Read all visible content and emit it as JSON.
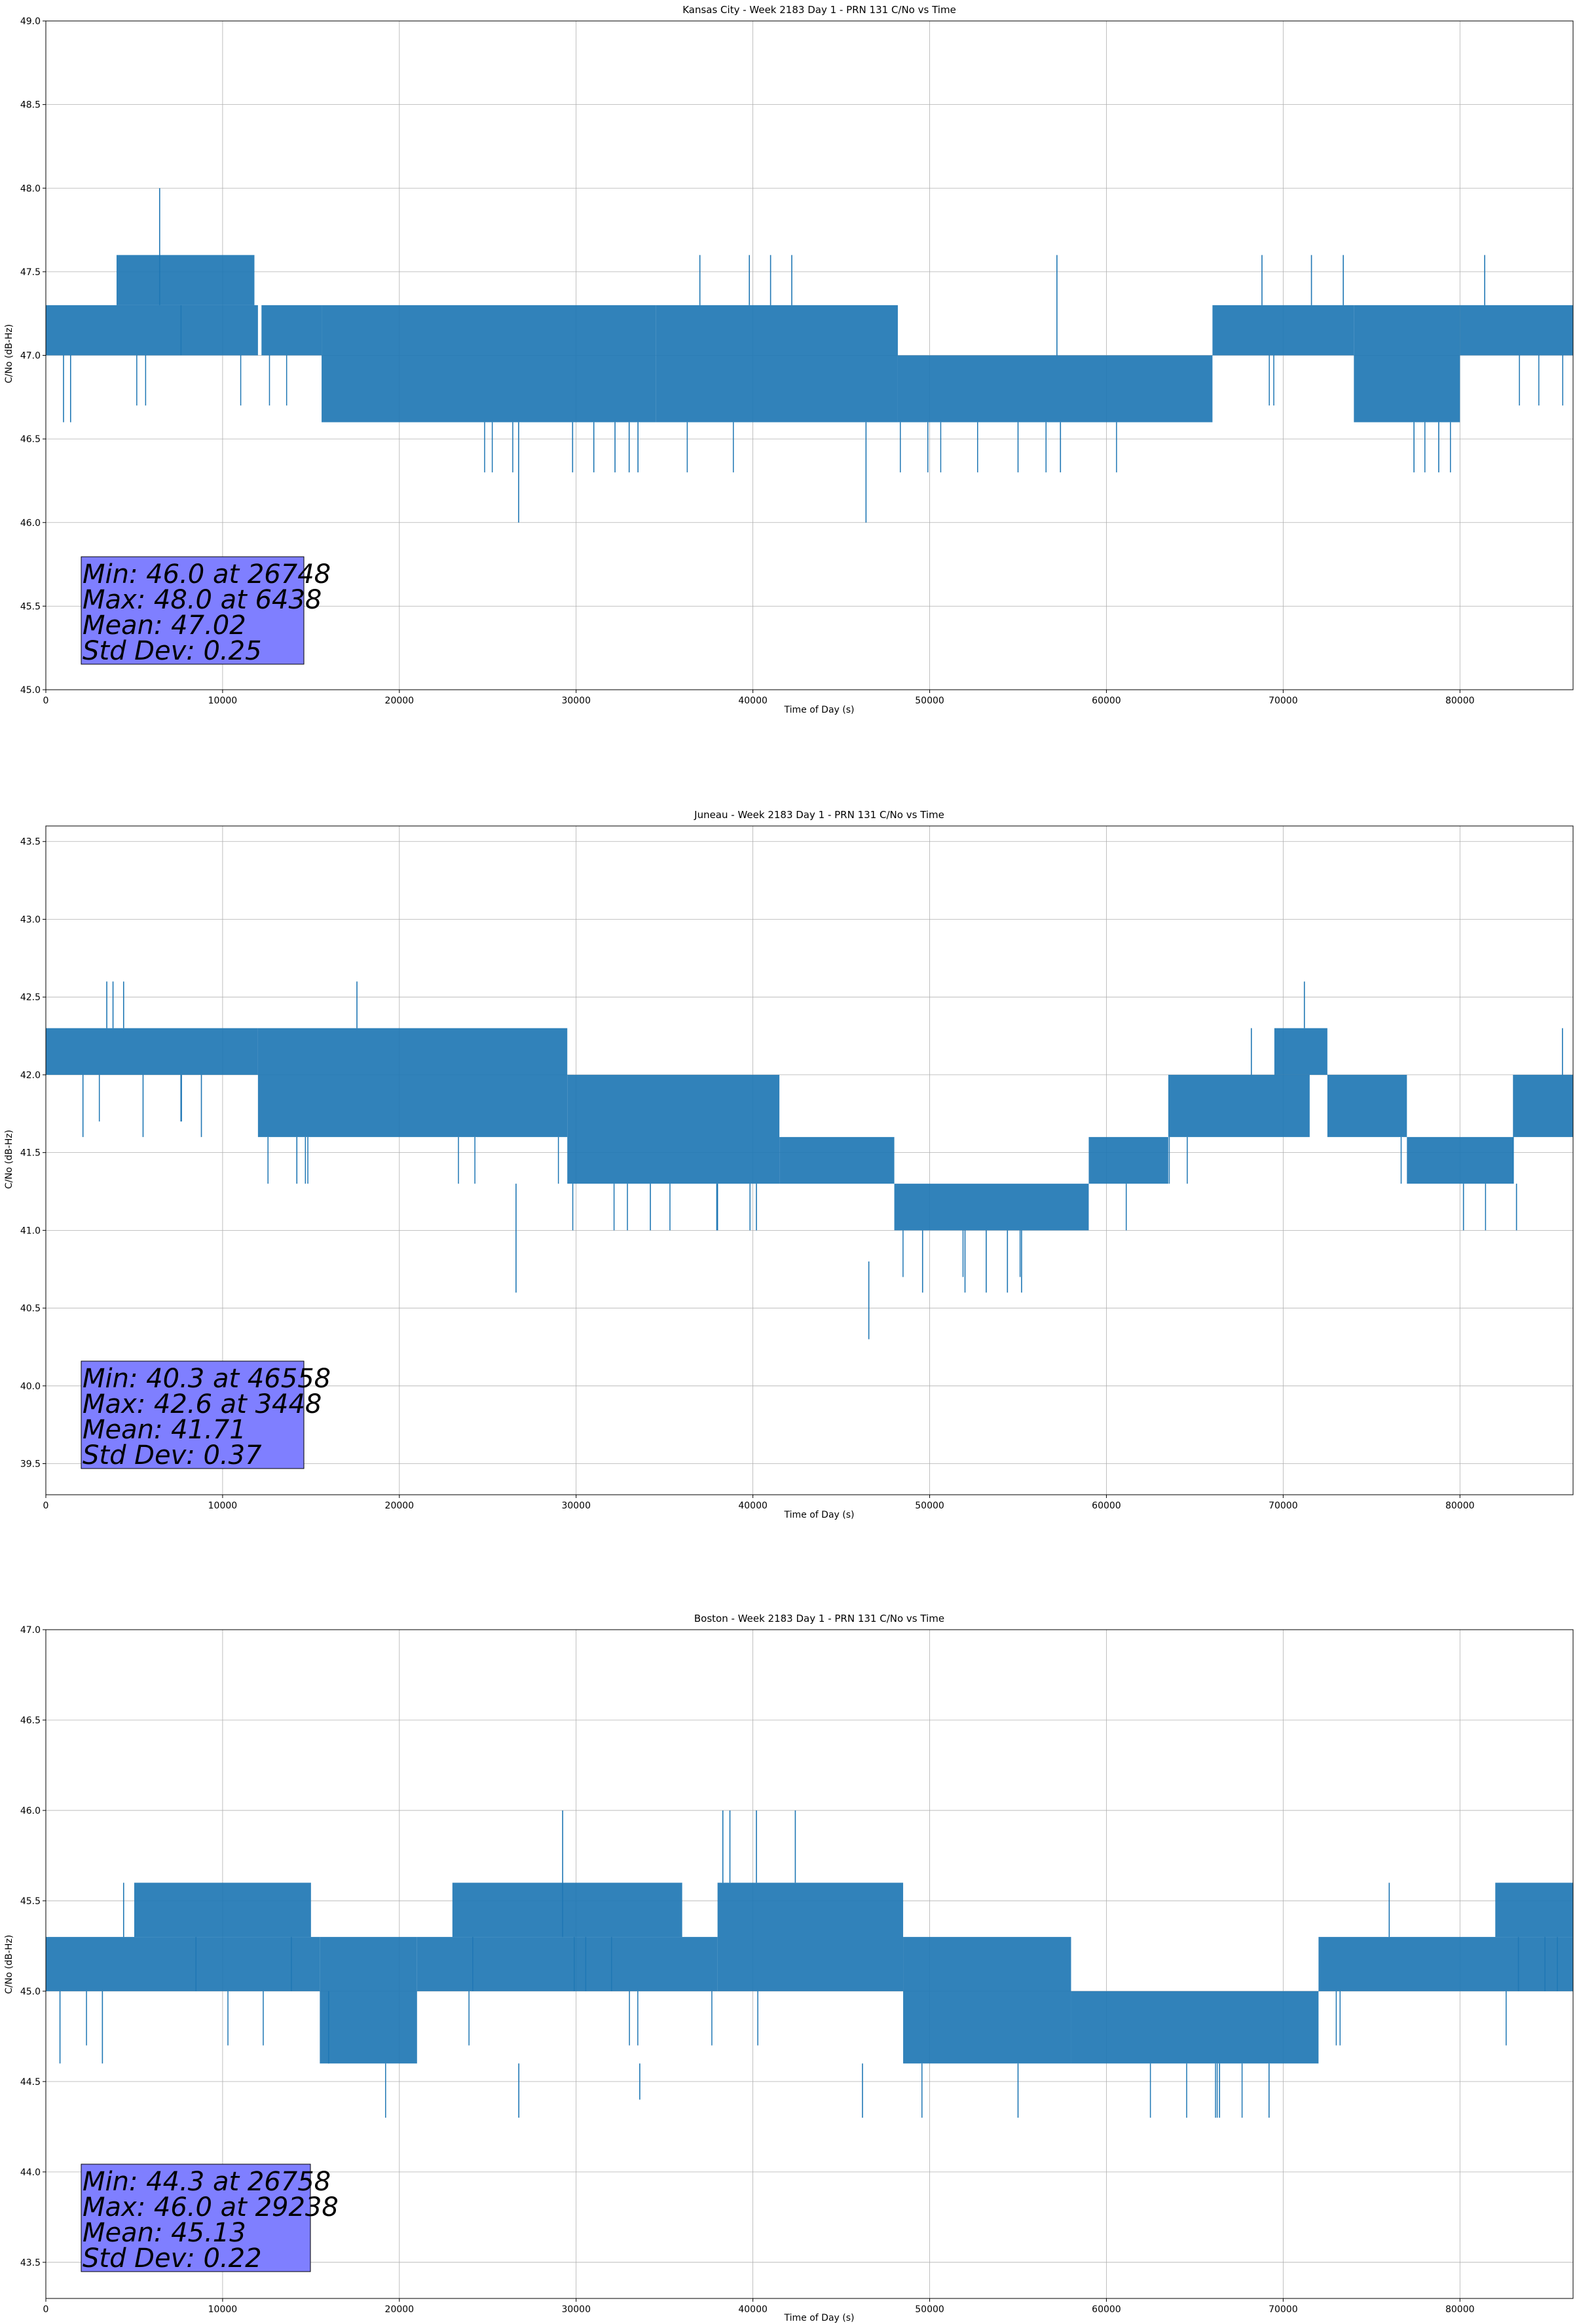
{
  "chart_data": [
    {
      "type": "line",
      "title": "Kansas City - Week 2183 Day 1 - PRN 131 C/No vs Time",
      "xlabel": "Time of Day (s)",
      "ylabel": "C/No (dB-Hz)",
      "xlim": [
        0,
        86400
      ],
      "ylim": [
        45.0,
        49.0
      ],
      "xticks": [
        0,
        10000,
        20000,
        30000,
        40000,
        50000,
        60000,
        70000,
        80000
      ],
      "yticks": [
        45.0,
        45.5,
        46.0,
        46.5,
        47.0,
        47.5,
        48.0,
        48.5,
        49.0
      ],
      "grid": true,
      "color": "#1f77b4",
      "stats": [
        "Min: 46.0 at 26748",
        "Max: 48.0 at 6438",
        "Mean: 47.02",
        "Std Dev: 0.25"
      ],
      "bands": [
        {
          "x0": 0,
          "x1": 12000,
          "lo": 47.0,
          "hi": 47.3
        },
        {
          "x0": 4000,
          "x1": 11800,
          "lo": 47.3,
          "hi": 47.6
        },
        {
          "x0": 12200,
          "x1": 15600,
          "lo": 47.0,
          "hi": 47.3
        },
        {
          "x0": 15600,
          "x1": 34500,
          "lo": 46.6,
          "hi": 47.3
        },
        {
          "x0": 34500,
          "x1": 48200,
          "lo": 46.6,
          "hi": 47.3
        },
        {
          "x0": 48200,
          "x1": 66000,
          "lo": 46.6,
          "hi": 47.0
        },
        {
          "x0": 66000,
          "x1": 74000,
          "lo": 47.0,
          "hi": 47.3
        },
        {
          "x0": 74000,
          "x1": 80000,
          "lo": 46.6,
          "hi": 47.3
        },
        {
          "x0": 80000,
          "x1": 86400,
          "lo": 47.0,
          "hi": 47.3
        }
      ],
      "spikes": [
        {
          "x": 6438,
          "lo": 47.3,
          "hi": 48.0
        },
        {
          "x": 26748,
          "lo": 46.0,
          "hi": 46.6
        },
        {
          "x": 46400,
          "lo": 46.0,
          "hi": 46.6
        },
        {
          "x": 37000,
          "lo": 47.3,
          "hi": 47.6
        },
        {
          "x": 39800,
          "lo": 47.3,
          "hi": 47.6
        },
        {
          "x": 41000,
          "lo": 47.3,
          "hi": 47.6
        },
        {
          "x": 42200,
          "lo": 47.3,
          "hi": 47.6
        },
        {
          "x": 57200,
          "lo": 47.0,
          "hi": 47.6
        },
        {
          "x": 68800,
          "lo": 47.3,
          "hi": 47.6
        },
        {
          "x": 71600,
          "lo": 47.3,
          "hi": 47.6
        },
        {
          "x": 73400,
          "lo": 47.3,
          "hi": 47.6
        },
        {
          "x": 81400,
          "lo": 47.3,
          "hi": 47.6
        },
        {
          "x": 31000,
          "lo": 46.3,
          "hi": 46.6
        },
        {
          "x": 32200,
          "lo": 46.3,
          "hi": 46.6
        },
        {
          "x": 33000,
          "lo": 46.3,
          "hi": 46.6
        },
        {
          "x": 55000,
          "lo": 46.3,
          "hi": 46.6
        },
        {
          "x": 57400,
          "lo": 46.3,
          "hi": 46.6
        },
        {
          "x": 77400,
          "lo": 46.3,
          "hi": 46.6
        },
        {
          "x": 78800,
          "lo": 46.3,
          "hi": 46.6
        },
        {
          "x": 1000,
          "lo": 46.6,
          "hi": 47.0
        },
        {
          "x": 1400,
          "lo": 46.6,
          "hi": 47.0
        },
        {
          "x": 29800,
          "lo": 46.3,
          "hi": 46.6
        },
        {
          "x": 33500,
          "lo": 46.3,
          "hi": 46.6
        }
      ]
    },
    {
      "type": "line",
      "title": "Juneau - Week 2183 Day 1 - PRN 131 C/No vs Time",
      "xlabel": "Time of Day (s)",
      "ylabel": "C/No (dB-Hz)",
      "xlim": [
        0,
        86400
      ],
      "ylim": [
        39.3,
        43.6
      ],
      "xticks": [
        0,
        10000,
        20000,
        30000,
        40000,
        50000,
        60000,
        70000,
        80000
      ],
      "yticks": [
        39.5,
        40.0,
        40.5,
        41.0,
        41.5,
        42.0,
        42.5,
        43.0,
        43.5
      ],
      "grid": true,
      "color": "#1f77b4",
      "stats": [
        "Min: 40.3 at 46558",
        "Max: 42.6 at 3448",
        "Mean: 41.71",
        "Std Dev: 0.37"
      ],
      "bands": [
        {
          "x0": 0,
          "x1": 12000,
          "lo": 42.0,
          "hi": 42.3
        },
        {
          "x0": 12000,
          "x1": 29500,
          "lo": 41.6,
          "hi": 42.3
        },
        {
          "x0": 29500,
          "x1": 41500,
          "lo": 41.3,
          "hi": 42.0
        },
        {
          "x0": 41500,
          "x1": 48000,
          "lo": 41.3,
          "hi": 41.6
        },
        {
          "x0": 48000,
          "x1": 59000,
          "lo": 41.0,
          "hi": 41.3
        },
        {
          "x0": 59000,
          "x1": 63500,
          "lo": 41.3,
          "hi": 41.6
        },
        {
          "x0": 63500,
          "x1": 71500,
          "lo": 41.6,
          "hi": 42.0
        },
        {
          "x0": 69500,
          "x1": 72500,
          "lo": 42.0,
          "hi": 42.3
        },
        {
          "x0": 72500,
          "x1": 77000,
          "lo": 41.6,
          "hi": 42.0
        },
        {
          "x0": 77000,
          "x1": 83000,
          "lo": 41.3,
          "hi": 41.6
        },
        {
          "x0": 83000,
          "x1": 86400,
          "lo": 41.6,
          "hi": 42.0
        }
      ],
      "spikes": [
        {
          "x": 3448,
          "lo": 42.3,
          "hi": 42.6
        },
        {
          "x": 3800,
          "lo": 42.3,
          "hi": 42.6
        },
        {
          "x": 4400,
          "lo": 42.3,
          "hi": 42.6
        },
        {
          "x": 17600,
          "lo": 42.3,
          "hi": 42.6
        },
        {
          "x": 71200,
          "lo": 42.3,
          "hi": 42.6
        },
        {
          "x": 26600,
          "lo": 40.6,
          "hi": 41.3
        },
        {
          "x": 46558,
          "lo": 40.3,
          "hi": 40.8
        },
        {
          "x": 49600,
          "lo": 40.6,
          "hi": 41.0
        },
        {
          "x": 52000,
          "lo": 40.6,
          "hi": 41.0
        },
        {
          "x": 53200,
          "lo": 40.6,
          "hi": 41.0
        },
        {
          "x": 54400,
          "lo": 40.6,
          "hi": 41.0
        },
        {
          "x": 55200,
          "lo": 40.6,
          "hi": 41.0
        },
        {
          "x": 14200,
          "lo": 41.3,
          "hi": 41.6
        },
        {
          "x": 2100,
          "lo": 41.6,
          "hi": 42.0
        },
        {
          "x": 5500,
          "lo": 41.6,
          "hi": 42.0
        },
        {
          "x": 8800,
          "lo": 41.6,
          "hi": 42.0
        },
        {
          "x": 34200,
          "lo": 41.0,
          "hi": 41.3
        },
        {
          "x": 38000,
          "lo": 41.0,
          "hi": 41.3
        },
        {
          "x": 40200,
          "lo": 41.0,
          "hi": 41.3
        },
        {
          "x": 80200,
          "lo": 41.0,
          "hi": 41.3
        },
        {
          "x": 83200,
          "lo": 41.0,
          "hi": 41.3
        },
        {
          "x": 68200,
          "lo": 42.0,
          "hi": 42.3
        },
        {
          "x": 85800,
          "lo": 42.0,
          "hi": 42.3
        }
      ]
    },
    {
      "type": "line",
      "title": "Boston - Week 2183 Day 1 - PRN 131 C/No vs Time",
      "xlabel": "Time of Day (s)",
      "ylabel": "C/No (dB-Hz)",
      "xlim": [
        0,
        86400
      ],
      "ylim": [
        43.3,
        47.0
      ],
      "xticks": [
        0,
        10000,
        20000,
        30000,
        40000,
        50000,
        60000,
        70000,
        80000
      ],
      "yticks": [
        43.5,
        44.0,
        44.5,
        45.0,
        45.5,
        46.0,
        46.5,
        47.0
      ],
      "grid": true,
      "color": "#1f77b4",
      "stats": [
        "Min: 44.3 at 26758",
        "Max: 46.0 at 29238",
        "Mean: 45.13",
        "Std Dev: 0.22"
      ],
      "bands": [
        {
          "x0": 0,
          "x1": 15500,
          "lo": 45.0,
          "hi": 45.3
        },
        {
          "x0": 5000,
          "x1": 15000,
          "lo": 45.3,
          "hi": 45.6
        },
        {
          "x0": 15500,
          "x1": 21000,
          "lo": 44.6,
          "hi": 45.3
        },
        {
          "x0": 21000,
          "x1": 38000,
          "lo": 45.0,
          "hi": 45.3
        },
        {
          "x0": 23000,
          "x1": 36000,
          "lo": 45.3,
          "hi": 45.6
        },
        {
          "x0": 38000,
          "x1": 48500,
          "lo": 45.0,
          "hi": 45.6
        },
        {
          "x0": 48500,
          "x1": 58000,
          "lo": 44.6,
          "hi": 45.3
        },
        {
          "x0": 58000,
          "x1": 72000,
          "lo": 44.6,
          "hi": 45.0
        },
        {
          "x0": 72000,
          "x1": 86400,
          "lo": 45.0,
          "hi": 45.3
        },
        {
          "x0": 82000,
          "x1": 86400,
          "lo": 45.3,
          "hi": 45.6
        }
      ],
      "spikes": [
        {
          "x": 29238,
          "lo": 45.3,
          "hi": 46.0
        },
        {
          "x": 38300,
          "lo": 45.6,
          "hi": 46.0
        },
        {
          "x": 38700,
          "lo": 45.6,
          "hi": 46.0
        },
        {
          "x": 40200,
          "lo": 45.6,
          "hi": 46.0
        },
        {
          "x": 42400,
          "lo": 45.6,
          "hi": 46.0
        },
        {
          "x": 26758,
          "lo": 44.3,
          "hi": 44.6
        },
        {
          "x": 33600,
          "lo": 44.4,
          "hi": 44.6
        },
        {
          "x": 46200,
          "lo": 44.3,
          "hi": 44.6
        },
        {
          "x": 55000,
          "lo": 44.3,
          "hi": 44.6
        },
        {
          "x": 66400,
          "lo": 44.3,
          "hi": 44.6
        },
        {
          "x": 69200,
          "lo": 44.3,
          "hi": 44.6
        },
        {
          "x": 76000,
          "lo": 45.3,
          "hi": 45.6
        },
        {
          "x": 4400,
          "lo": 45.3,
          "hi": 45.6
        },
        {
          "x": 800,
          "lo": 44.6,
          "hi": 45.0
        },
        {
          "x": 3200,
          "lo": 44.6,
          "hi": 45.0
        },
        {
          "x": 16000,
          "lo": 44.6,
          "hi": 45.0
        }
      ]
    }
  ]
}
